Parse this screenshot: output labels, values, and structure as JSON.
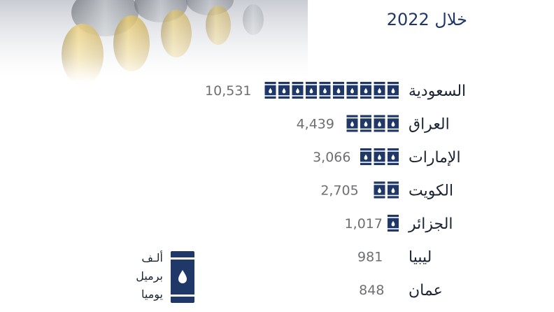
{
  "subtitle": "خلال 2022",
  "legend": {
    "lines": [
      "ألـف",
      "برميل",
      "يوميا"
    ],
    "barrel_icon": "oil-barrel-icon",
    "units_per_barrel_icon": 1000
  },
  "colors": {
    "barrel": "#1f3868",
    "title": "#1f3868",
    "label": "#1b2433",
    "value": "#6d6f72"
  },
  "chart_data": {
    "type": "bar",
    "orientation": "horizontal",
    "pictogram": "oil-barrel-icon",
    "subtitle": "خلال 2022",
    "categories": [
      "السعودية",
      "العراق",
      "الإمارات",
      "الكويت",
      "الجزائر",
      "ليبيا",
      "عمان"
    ],
    "value_labels": [
      "10,531",
      "4,439",
      "3,066",
      "2,705",
      "1,017",
      "981",
      "848"
    ],
    "values": [
      10531,
      4439,
      3066,
      2705,
      1017,
      981,
      848
    ],
    "units": "ألف برميل يوميا"
  }
}
